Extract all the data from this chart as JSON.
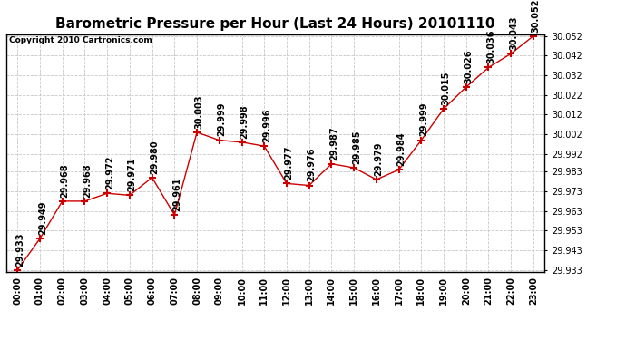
{
  "title": "Barometric Pressure per Hour (Last 24 Hours) 20101110",
  "copyright": "Copyright 2010 Cartronics.com",
  "x_labels": [
    "00:00",
    "01:00",
    "02:00",
    "03:00",
    "04:00",
    "05:00",
    "06:00",
    "07:00",
    "08:00",
    "09:00",
    "10:00",
    "11:00",
    "12:00",
    "13:00",
    "14:00",
    "15:00",
    "16:00",
    "17:00",
    "18:00",
    "19:00",
    "20:00",
    "21:00",
    "22:00",
    "23:00"
  ],
  "y_values": [
    29.933,
    29.949,
    29.968,
    29.968,
    29.972,
    29.971,
    29.98,
    29.961,
    30.003,
    29.999,
    29.998,
    29.996,
    29.977,
    29.976,
    29.987,
    29.985,
    29.979,
    29.984,
    29.999,
    30.015,
    30.026,
    30.036,
    30.043,
    30.052
  ],
  "line_color": "#cc0000",
  "marker_color": "#cc0000",
  "bg_color": "#ffffff",
  "plot_bg_color": "#ffffff",
  "grid_color": "#c8c8c8",
  "title_fontsize": 11,
  "copyright_fontsize": 6.5,
  "label_fontsize": 7,
  "tick_fontsize": 7,
  "ylim_min": 29.933,
  "ylim_max": 30.052,
  "yticks": [
    29.933,
    29.943,
    29.953,
    29.963,
    29.973,
    29.983,
    29.992,
    30.002,
    30.012,
    30.022,
    30.032,
    30.042,
    30.052
  ]
}
